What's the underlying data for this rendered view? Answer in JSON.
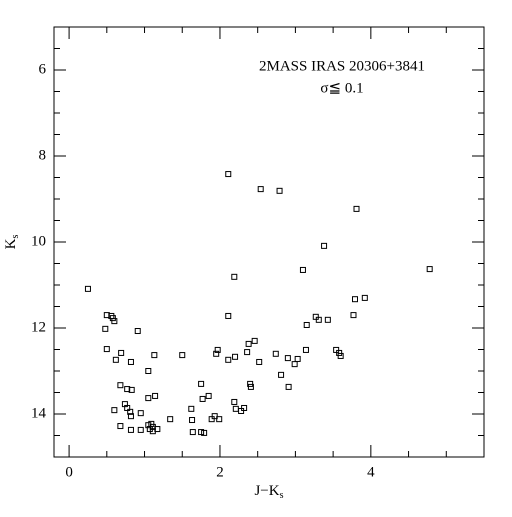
{
  "chart_data": {
    "type": "scatter",
    "annotations": [
      "2MASS IRAS 20306+3841",
      "σ≦ 0.1"
    ],
    "xlabel": {
      "text": "J−K",
      "subscript": "s"
    },
    "ylabel": {
      "text": "K",
      "subscript": "s"
    },
    "xlim": [
      -0.2,
      5.5
    ],
    "ylim": [
      15,
      5
    ],
    "xticks": [
      0,
      2,
      4
    ],
    "yticks": [
      6,
      8,
      10,
      12,
      14
    ],
    "xticks_minor": [
      0.5,
      1,
      1.5,
      2.5,
      3,
      3.5,
      4.5,
      5
    ],
    "yticks_minor": [
      5.5,
      6.5,
      7,
      7.5,
      8.5,
      9,
      9.5,
      10.5,
      11,
      11.5,
      12.5,
      13,
      13.5,
      14.5
    ],
    "color": "#000000",
    "series": [
      {
        "x": [
          0.25,
          0.5,
          0.56,
          0.58,
          0.6,
          0.48,
          0.91,
          0.5,
          0.69,
          0.62,
          0.82,
          1.05,
          1.13,
          0.68,
          0.77,
          0.83,
          0.74,
          0.77,
          0.81,
          0.82,
          0.6,
          0.95,
          1.05,
          1.14,
          0.68,
          0.82,
          0.95,
          1.05,
          1.09,
          1.11,
          1.07,
          1.17,
          1.11,
          1.34,
          1.5,
          1.62,
          1.63,
          1.64,
          1.75,
          1.77,
          1.85,
          1.75,
          1.79,
          1.89,
          1.93,
          1.99,
          1.95,
          1.97,
          2.11,
          2.11,
          2.11,
          2.2,
          2.19,
          2.21,
          2.28,
          2.32,
          2.4,
          2.41,
          2.36,
          2.38,
          2.46,
          2.52,
          2.54,
          2.19,
          2.79,
          2.74,
          2.81,
          2.9,
          2.91,
          2.99,
          3.03,
          3.1,
          3.14,
          3.15,
          3.27,
          3.31,
          3.38,
          3.43,
          3.54,
          3.58,
          3.6,
          3.77,
          3.79,
          3.81,
          3.92,
          4.78
        ],
        "values": [
          11.09,
          11.7,
          11.72,
          11.77,
          11.84,
          12.02,
          12.07,
          12.49,
          12.58,
          12.74,
          12.79,
          13.0,
          12.63,
          13.33,
          13.42,
          13.44,
          13.77,
          13.86,
          13.95,
          14.05,
          13.91,
          13.98,
          13.63,
          13.58,
          14.28,
          14.37,
          14.37,
          14.26,
          14.23,
          14.3,
          14.35,
          14.35,
          14.4,
          14.12,
          12.63,
          13.88,
          14.14,
          14.42,
          13.3,
          13.65,
          13.58,
          14.42,
          14.44,
          14.12,
          14.05,
          14.12,
          12.6,
          12.51,
          11.72,
          8.42,
          12.74,
          12.67,
          13.72,
          13.88,
          13.93,
          13.86,
          13.3,
          13.37,
          12.56,
          12.37,
          12.3,
          12.79,
          8.77,
          10.81,
          8.81,
          12.6,
          13.09,
          12.7,
          13.37,
          12.84,
          12.72,
          10.65,
          12.51,
          11.93,
          11.74,
          11.81,
          10.09,
          11.81,
          12.51,
          12.58,
          12.65,
          11.7,
          11.33,
          9.23,
          11.3,
          10.63
        ]
      }
    ]
  }
}
